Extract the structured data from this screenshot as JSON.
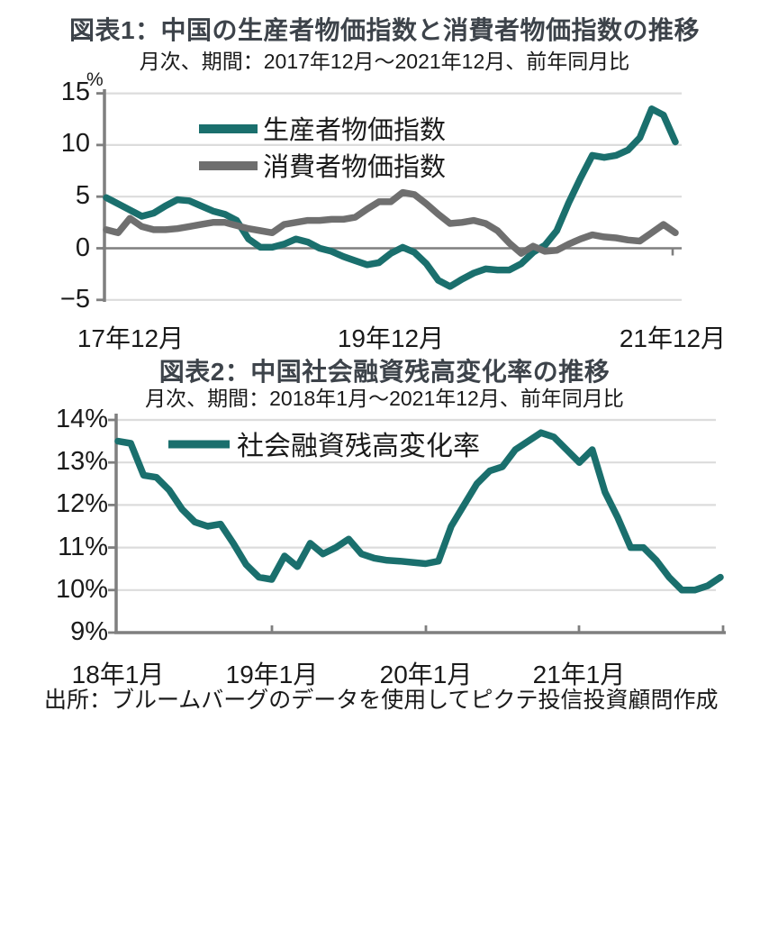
{
  "colors": {
    "ppi_line": "#1a6f6d",
    "cpi_line": "#6f6f6f",
    "tsf_line": "#1a6f6d",
    "gridline": "#dcdcdc",
    "axis": "#7f7f7f",
    "title_text": "#3d434a",
    "body_text": "#1a1a1a"
  },
  "source_note": "出所：ブルームバーグのデータを使用してピクテ投信投資顧問作成",
  "chart_data": [
    {
      "type": "line",
      "title": "図表1：中国の生産者物価指数と消費者物価指数の推移",
      "subtitle": "月次、期間：2017年12月～2021年12月、前年同月比",
      "unit": "%",
      "ylim": [
        -5,
        15
      ],
      "y_ticks": [
        15,
        10,
        5,
        0,
        -5
      ],
      "y_tick_labels": [
        "15",
        "10",
        "5",
        "0",
        "−5"
      ],
      "x_tick_labels": [
        "17年12月",
        "19年12月",
        "21年12月"
      ],
      "x_tick_months": [
        "2017-12",
        "2019-12",
        "2021-12"
      ],
      "grid": "horizontal",
      "legend_position": "top-left-inside",
      "x": [
        "2017-12",
        "2018-01",
        "2018-02",
        "2018-03",
        "2018-04",
        "2018-05",
        "2018-06",
        "2018-07",
        "2018-08",
        "2018-09",
        "2018-10",
        "2018-11",
        "2018-12",
        "2019-01",
        "2019-02",
        "2019-03",
        "2019-04",
        "2019-05",
        "2019-06",
        "2019-07",
        "2019-08",
        "2019-09",
        "2019-10",
        "2019-11",
        "2019-12",
        "2020-01",
        "2020-02",
        "2020-03",
        "2020-04",
        "2020-05",
        "2020-06",
        "2020-07",
        "2020-08",
        "2020-09",
        "2020-10",
        "2020-11",
        "2020-12",
        "2021-01",
        "2021-02",
        "2021-03",
        "2021-04",
        "2021-05",
        "2021-06",
        "2021-07",
        "2021-08",
        "2021-09",
        "2021-10",
        "2021-11",
        "2021-12"
      ],
      "series": [
        {
          "name": "生産者物価指数",
          "color": "#1a6f6d",
          "values": [
            4.9,
            4.3,
            3.7,
            3.1,
            3.4,
            4.1,
            4.7,
            4.6,
            4.1,
            3.6,
            3.3,
            2.7,
            0.9,
            0.1,
            0.1,
            0.4,
            0.9,
            0.6,
            0.0,
            -0.3,
            -0.8,
            -1.2,
            -1.6,
            -1.4,
            -0.5,
            0.1,
            -0.4,
            -1.5,
            -3.1,
            -3.7,
            -3.0,
            -2.4,
            -2.0,
            -2.1,
            -2.1,
            -1.5,
            -0.4,
            0.3,
            1.7,
            4.4,
            6.8,
            9.0,
            8.8,
            9.0,
            9.5,
            10.7,
            13.5,
            12.9,
            10.3
          ]
        },
        {
          "name": "消費者物価指数",
          "color": "#6f6f6f",
          "values": [
            1.8,
            1.5,
            2.9,
            2.1,
            1.8,
            1.8,
            1.9,
            2.1,
            2.3,
            2.5,
            2.5,
            2.2,
            1.9,
            1.7,
            1.5,
            2.3,
            2.5,
            2.7,
            2.7,
            2.8,
            2.8,
            3.0,
            3.8,
            4.5,
            4.5,
            5.4,
            5.2,
            4.3,
            3.3,
            2.4,
            2.5,
            2.7,
            2.4,
            1.7,
            0.5,
            -0.5,
            0.2,
            -0.3,
            -0.2,
            0.4,
            0.9,
            1.3,
            1.1,
            1.0,
            0.8,
            0.7,
            1.5,
            2.3,
            1.5
          ]
        }
      ]
    },
    {
      "type": "line",
      "title": "図表2：中国社会融資残高変化率の推移",
      "subtitle": "月次、期間：2018年1月～2021年12月、前年同月比",
      "unit": "%",
      "ylim": [
        9,
        14
      ],
      "y_ticks": [
        14,
        13,
        12,
        11,
        10,
        9
      ],
      "y_tick_labels": [
        "14%",
        "13%",
        "12%",
        "11%",
        "10%",
        "9%"
      ],
      "x_tick_labels": [
        "18年1月",
        "19年1月",
        "20年1月",
        "21年1月"
      ],
      "x_tick_months": [
        "2018-01",
        "2019-01",
        "2020-01",
        "2021-01"
      ],
      "grid": "horizontal",
      "legend_position": "top-left-inside",
      "x": [
        "2018-01",
        "2018-02",
        "2018-03",
        "2018-04",
        "2018-05",
        "2018-06",
        "2018-07",
        "2018-08",
        "2018-09",
        "2018-10",
        "2018-11",
        "2018-12",
        "2019-01",
        "2019-02",
        "2019-03",
        "2019-04",
        "2019-05",
        "2019-06",
        "2019-07",
        "2019-08",
        "2019-09",
        "2019-10",
        "2019-11",
        "2019-12",
        "2020-01",
        "2020-02",
        "2020-03",
        "2020-04",
        "2020-05",
        "2020-06",
        "2020-07",
        "2020-08",
        "2020-09",
        "2020-10",
        "2020-11",
        "2020-12",
        "2021-01",
        "2021-02",
        "2021-03",
        "2021-04",
        "2021-05",
        "2021-06",
        "2021-07",
        "2021-08",
        "2021-09",
        "2021-10",
        "2021-11",
        "2021-12"
      ],
      "series": [
        {
          "name": "社会融資残高変化率",
          "color": "#1a6f6d",
          "values": [
            13.5,
            13.45,
            12.7,
            12.65,
            12.35,
            11.9,
            11.6,
            11.5,
            11.55,
            11.1,
            10.6,
            10.3,
            10.25,
            10.8,
            10.55,
            11.1,
            10.85,
            11.0,
            11.2,
            10.85,
            10.75,
            10.7,
            10.68,
            10.65,
            10.62,
            10.68,
            11.5,
            12.0,
            12.5,
            12.8,
            12.9,
            13.3,
            13.5,
            13.7,
            13.6,
            13.3,
            13.0,
            13.3,
            12.3,
            11.7,
            11.0,
            11.0,
            10.7,
            10.3,
            10.0,
            10.0,
            10.1,
            10.3
          ]
        }
      ]
    }
  ]
}
